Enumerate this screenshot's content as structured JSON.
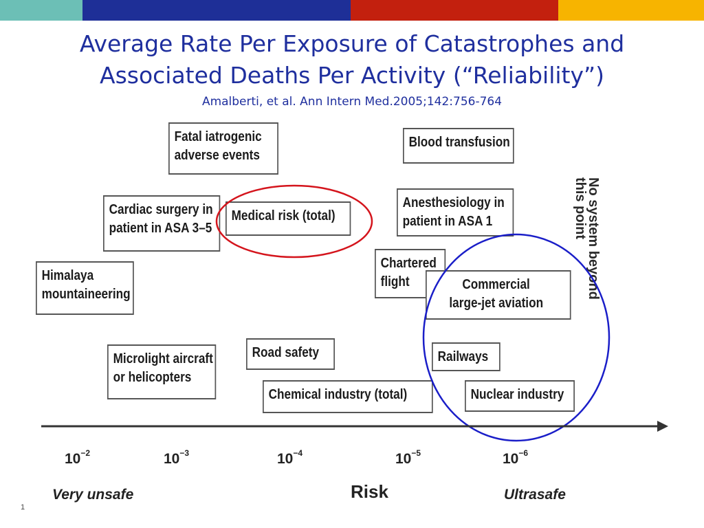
{
  "header": {
    "stripe_colors": [
      "#6cbfb6",
      "#1e2f97",
      "#c3200e",
      "#f7b400"
    ]
  },
  "title": {
    "line1": "Average Rate Per Exposure of Catastrophes and",
    "line2": "Associated Deaths Per Activity (“Reliability”)",
    "citation": "Amalberti, et al. Ann Intern Med.2005;142:756-764"
  },
  "boxes": {
    "fatal_iatrogenic": [
      "Fatal iatrogenic",
      "adverse events"
    ],
    "blood_transfusion": [
      "Blood transfusion"
    ],
    "cardiac_surgery": [
      "Cardiac surgery in",
      "patient in ASA 3–5"
    ],
    "medical_risk": [
      "Medical risk (total)"
    ],
    "anesthesiology": [
      "Anesthesiology in",
      "patient in ASA 1"
    ],
    "himalaya": [
      "Himalaya",
      "mountaineering"
    ],
    "chartered_flight": [
      "Chartered",
      "flight"
    ],
    "commercial_aviation": [
      "Commercial",
      "large-jet aviation"
    ],
    "microlight": [
      "Microlight aircraft",
      "or helicopters"
    ],
    "road_safety": [
      "Road safety"
    ],
    "railways": [
      "Railways"
    ],
    "chemical_industry": [
      "Chemical industry (total)"
    ],
    "nuclear_industry": [
      "Nuclear industry"
    ]
  },
  "highlights": {
    "red_ellipse_color": "#d4141c",
    "blue_ellipse_color": "#1a1ec8"
  },
  "vertical_note": "No system beyond this point",
  "axis": {
    "ticks": [
      {
        "base": "10",
        "exp": "−2"
      },
      {
        "base": "10",
        "exp": "−3"
      },
      {
        "base": "10",
        "exp": "−4"
      },
      {
        "base": "10",
        "exp": "−5"
      },
      {
        "base": "10",
        "exp": "−6"
      }
    ],
    "left_label": "Very unsafe",
    "center_label": "Risk",
    "right_label": "Ultrasafe"
  },
  "slide_number": "1"
}
